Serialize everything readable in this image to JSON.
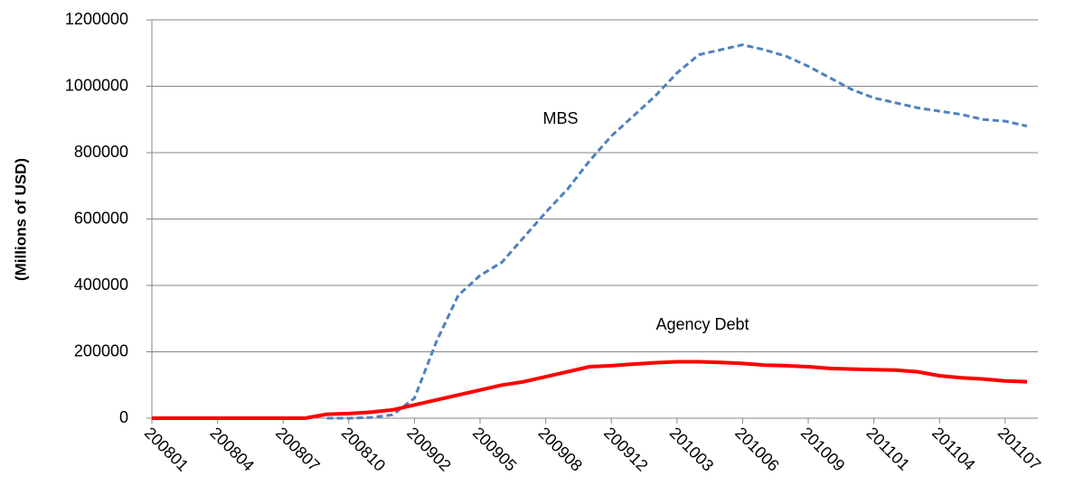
{
  "chart_data": {
    "type": "line",
    "y_label": "(Millions of USD)",
    "categories": [
      "200801",
      null,
      null,
      "200804",
      null,
      null,
      "200807",
      null,
      null,
      "200810",
      null,
      null,
      "200902",
      null,
      null,
      "200905",
      null,
      null,
      "200908",
      null,
      null,
      "200912",
      null,
      null,
      "201003",
      null,
      null,
      "201006",
      null,
      null,
      "201009",
      null,
      null,
      "201101",
      null,
      null,
      "201104",
      null,
      null,
      "201107",
      null
    ],
    "series": [
      {
        "name": "MBS",
        "color": "#4f81bd",
        "dash": true,
        "values": [
          null,
          null,
          null,
          null,
          null,
          null,
          null,
          null,
          0,
          0,
          2000,
          10000,
          60000,
          230000,
          370000,
          430000,
          470000,
          545000,
          620000,
          690000,
          775000,
          850000,
          910000,
          970000,
          1040000,
          1095000,
          1110000,
          1125000,
          1110000,
          1090000,
          1060000,
          1025000,
          990000,
          965000,
          950000,
          935000,
          925000,
          915000,
          900000,
          895000,
          880000
        ]
      },
      {
        "name": "Agency Debt",
        "color": "#ff0000",
        "dash": false,
        "values": [
          0,
          0,
          0,
          0,
          0,
          0,
          0,
          0,
          12000,
          14000,
          18000,
          25000,
          40000,
          55000,
          70000,
          85000,
          100000,
          110000,
          125000,
          140000,
          155000,
          158000,
          163000,
          167000,
          170000,
          170000,
          168000,
          165000,
          160000,
          158000,
          155000,
          150000,
          148000,
          146000,
          145000,
          140000,
          128000,
          122000,
          118000,
          112000,
          110000
        ]
      }
    ],
    "ylim": [
      0,
      1200000
    ],
    "yticks": [
      0,
      200000,
      400000,
      600000,
      800000,
      1000000,
      1200000
    ],
    "grid": true
  }
}
